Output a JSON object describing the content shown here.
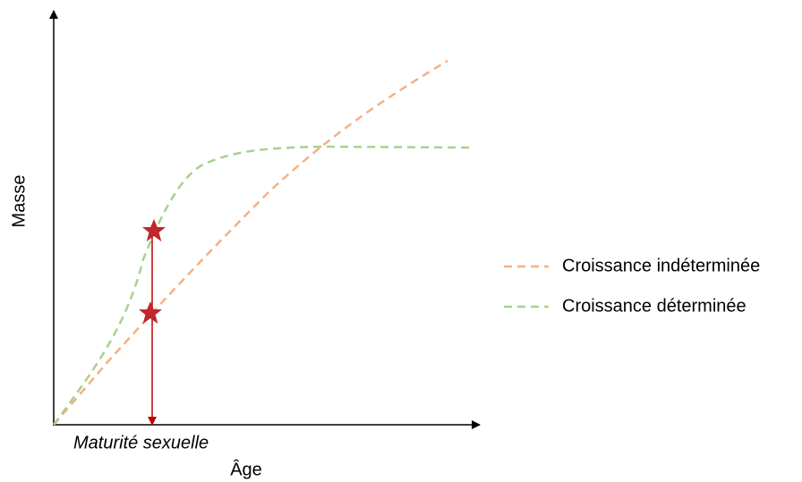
{
  "axes": {
    "y_label": "Masse",
    "x_label": "Âge"
  },
  "annotation": "Maturité sexuelle",
  "legend": [
    {
      "name": "Croissance indéterminée",
      "color": "#f4b183"
    },
    {
      "name": "Croissance déterminée",
      "color": "#a9d18e"
    }
  ]
}
